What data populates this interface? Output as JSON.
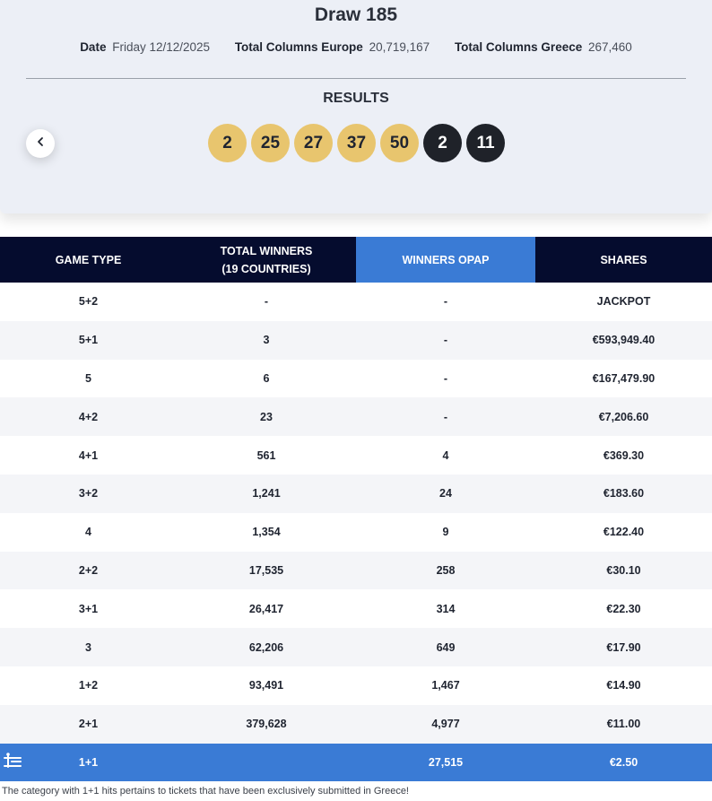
{
  "draw": {
    "title": "Draw 185"
  },
  "meta": {
    "date_label": "Date",
    "date_value": "Friday 12/12/2025",
    "europe_label": "Total Columns Europe",
    "europe_value": "20,719,167",
    "greece_label": "Total Columns Greece",
    "greece_value": "267,460"
  },
  "results": {
    "label": "RESULTS",
    "main_numbers": [
      "2",
      "25",
      "27",
      "37",
      "50"
    ],
    "star_numbers": [
      "2",
      "11"
    ],
    "main_color": "#e8c56e",
    "star_color": "#1f2229"
  },
  "table": {
    "headers": {
      "game_type": "GAME TYPE",
      "total_winners_line1": "TOTAL WINNERS",
      "total_winners_line2": "(19 COUNTRIES)",
      "winners_opap": "WINNERS OPAP",
      "shares": "SHARES"
    },
    "rows": [
      [
        "5+2",
        "-",
        "-",
        "JACKPOT"
      ],
      [
        "5+1",
        "3",
        "-",
        "€593,949.40"
      ],
      [
        "5",
        "6",
        "-",
        "€167,479.90"
      ],
      [
        "4+2",
        "23",
        "-",
        "€7,206.60"
      ],
      [
        "4+1",
        "561",
        "4",
        "€369.30"
      ],
      [
        "3+2",
        "1,241",
        "24",
        "€183.60"
      ],
      [
        "4",
        "1,354",
        "9",
        "€122.40"
      ],
      [
        "2+2",
        "17,535",
        "258",
        "€30.10"
      ],
      [
        "3+1",
        "26,417",
        "314",
        "€22.30"
      ],
      [
        "3",
        "62,206",
        "649",
        "€17.90"
      ],
      [
        "1+2",
        "93,491",
        "1,467",
        "€14.90"
      ],
      [
        "2+1",
        "379,628",
        "4,977",
        "€11.00"
      ],
      [
        "1+1",
        "",
        "27,515",
        "€2.50"
      ]
    ],
    "header_color": "#050c2e",
    "accent_color": "#3a7bd5"
  },
  "footnote": "The category with 1+1 hits pertains to tickets that have been exclusively submitted in Greece!",
  "icons": {
    "prev": "chevron-left-icon",
    "accessibility": "accessibility-icon"
  }
}
